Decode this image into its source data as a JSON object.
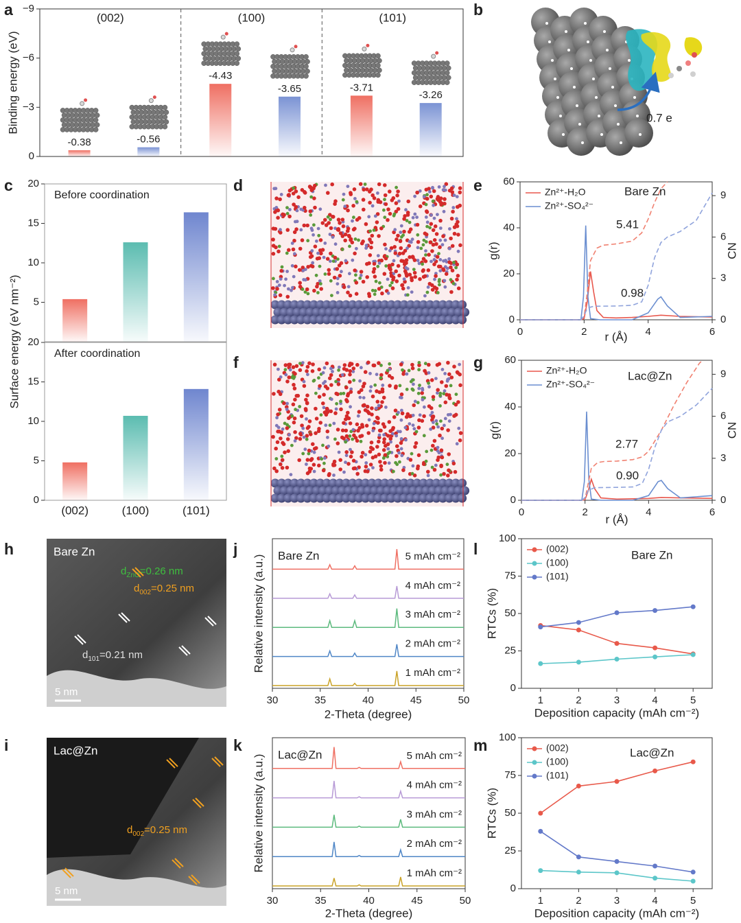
{
  "chart_data": [
    {
      "panel": "a",
      "type": "bar",
      "ylabel": "Binding energy (eV)",
      "categories": [
        "(002)",
        "(100)",
        "(101)"
      ],
      "series": [
        {
          "color": "#ef6f62",
          "values": [
            -0.38,
            -4.43,
            -3.71
          ]
        },
        {
          "color": "#7b93d4",
          "values": [
            -0.56,
            -3.65,
            -3.26
          ]
        }
      ],
      "ylim": [
        0,
        -9
      ],
      "yticks": [
        0,
        {
          "value": -3,
          "label": "−3"
        },
        {
          "value": -6,
          "label": "−6"
        },
        {
          "value": -9,
          "label": "−9"
        }
      ],
      "data_labels": true
    },
    {
      "panel": "c",
      "type": "bar",
      "title": "Before coordination",
      "ylabel": "Surface energy (eV nm⁻²)",
      "categories": [
        null,
        null,
        null
      ],
      "values": [
        5.4,
        12.6,
        16.4
      ],
      "colors": [
        "#ef6f62",
        "#5bbcb0",
        "#6f86cf"
      ],
      "ylim": [
        0,
        20
      ],
      "yticks": [
        5,
        10,
        15,
        20
      ]
    },
    {
      "type": "bar",
      "title": "After coordination",
      "categories": [
        "(002)",
        "(100)",
        "(101)"
      ],
      "values": [
        4.8,
        10.7,
        14.1
      ],
      "colors": [
        "#ef6f62",
        "#5bbcb0",
        "#6f86cf"
      ],
      "ylim": [
        0,
        20
      ],
      "yticks": [
        0,
        5,
        10,
        15,
        20
      ]
    },
    {
      "panel": "e",
      "type": "line",
      "xlabel": "r (Å)",
      "ylabel": "g(r)",
      "y2label": "CN",
      "xlim": [
        0,
        6
      ],
      "xticks": [
        0,
        2,
        4,
        6
      ],
      "ylim": [
        0,
        60
      ],
      "yticks": [
        0,
        20,
        40,
        60
      ],
      "y2lim": [
        0,
        10
      ],
      "y2ticks": [
        0,
        3,
        6,
        9
      ],
      "legend": "upper left",
      "annotations": [
        "Bare Zn",
        "5.41",
        "0.98"
      ],
      "series": [
        {
          "name": "Zn²⁺-H₂O",
          "color": "#e8574c",
          "x": [
            0,
            1.9,
            2.0,
            2.1,
            2.2,
            2.3,
            2.4,
            2.6,
            3.0,
            3.5,
            4.0,
            4.4,
            5.0,
            6.0
          ],
          "values": [
            0,
            0,
            0.5,
            8,
            21,
            12,
            4,
            1,
            0.8,
            1,
            1.5,
            2,
            1.5,
            1.2
          ]
        },
        {
          "name": "Zn²⁺-SO₄²⁻",
          "color": "#6a8ed0",
          "x": [
            0,
            1.9,
            1.98,
            2.05,
            2.12,
            2.2,
            2.5,
            3.5,
            4.0,
            4.3,
            4.4,
            4.6,
            5.0,
            6.0
          ],
          "values": [
            0,
            0,
            10,
            41,
            10,
            0.5,
            0,
            0,
            3,
            9,
            10,
            6,
            1,
            1.5
          ]
        },
        {
          "color": "#f08070",
          "dash": true,
          "axis": "y2",
          "x": [
            0,
            1.9,
            2.0,
            2.1,
            2.2,
            2.4,
            2.6,
            3.0,
            3.5,
            3.8,
            4.0,
            4.2,
            4.4,
            4.6
          ],
          "values": [
            0,
            0,
            0.2,
            2,
            4.3,
            5.2,
            5.41,
            5.5,
            5.7,
            6.3,
            7.3,
            8.5,
            9.5,
            10
          ]
        },
        {
          "color": "#8fa3dc",
          "dash": true,
          "axis": "y2",
          "x": [
            0,
            1.9,
            2.0,
            2.1,
            2.3,
            3.0,
            3.5,
            3.8,
            4.0,
            4.2,
            4.4,
            4.6,
            5.0,
            5.5,
            6.0
          ],
          "values": [
            0,
            0,
            0.3,
            0.85,
            0.98,
            1.0,
            1.05,
            1.3,
            2.5,
            4.5,
            5.6,
            6.0,
            6.4,
            7.2,
            9.2
          ]
        }
      ]
    },
    {
      "panel": "g",
      "type": "line",
      "xlabel": "r (Å)",
      "ylabel": "g(r)",
      "y2label": "CN",
      "xlim": [
        0,
        6
      ],
      "xticks": [
        0,
        2,
        4,
        6
      ],
      "ylim": [
        0,
        60
      ],
      "yticks": [
        0,
        20,
        40,
        60
      ],
      "y2lim": [
        0,
        10
      ],
      "y2ticks": [
        0,
        3,
        6,
        9
      ],
      "legend": "upper left",
      "annotations": [
        "Lac@Zn",
        "2.77",
        "0.90"
      ],
      "series": [
        {
          "name": "Zn²⁺-H₂O",
          "color": "#e8574c",
          "x": [
            0,
            1.9,
            2.0,
            2.1,
            2.2,
            2.3,
            2.5,
            3.0,
            4.0,
            4.4,
            5.0,
            6.0
          ],
          "values": [
            0,
            0,
            0.3,
            4,
            9,
            5,
            1,
            0.5,
            0.8,
            1.2,
            1,
            0.8
          ]
        },
        {
          "name": "Zn²⁺-SO₄²⁻",
          "color": "#6a8ed0",
          "x": [
            0,
            1.9,
            1.98,
            2.05,
            2.12,
            2.2,
            2.5,
            3.5,
            4.0,
            4.3,
            4.4,
            4.6,
            5.0,
            6.0
          ],
          "values": [
            0,
            0,
            8,
            38,
            9,
            0.5,
            0,
            0,
            2,
            8,
            8.5,
            5,
            1,
            2
          ]
        },
        {
          "color": "#f08070",
          "dash": true,
          "axis": "y2",
          "x": [
            0,
            1.9,
            2.0,
            2.1,
            2.2,
            2.4,
            2.6,
            3.0,
            3.5,
            3.8,
            4.0,
            4.4,
            4.8,
            5.2,
            5.6,
            5.7
          ],
          "values": [
            0,
            0,
            0.1,
            1.2,
            2.3,
            2.7,
            2.77,
            2.8,
            2.9,
            3.1,
            3.5,
            5,
            6.8,
            8.4,
            9.8,
            10
          ]
        },
        {
          "color": "#8fa3dc",
          "dash": true,
          "axis": "y2",
          "x": [
            0,
            1.9,
            2.0,
            2.1,
            2.3,
            3.0,
            3.5,
            3.8,
            4.0,
            4.2,
            4.4,
            4.6,
            5.0,
            5.5,
            6.0
          ],
          "values": [
            0,
            0,
            0.2,
            0.7,
            0.9,
            0.92,
            0.95,
            1.2,
            2.2,
            3.8,
            5,
            5.6,
            6,
            6.8,
            8
          ]
        }
      ]
    },
    {
      "panel": "j",
      "type": "spectrum",
      "title": "Bare Zn",
      "xlabel": "2-Theta (degree)",
      "ylabel": "Relative intensity (a.u.)",
      "xlim": [
        30,
        50
      ],
      "xticks": [
        30,
        35,
        40,
        45,
        50
      ],
      "ylim": [
        0,
        1
      ],
      "x": [
        30,
        35.8,
        36.0,
        36.2,
        38.4,
        38.6,
        38.8,
        42.8,
        43.0,
        43.2,
        50
      ],
      "series": [
        {
          "name": "5 mAh cm⁻²",
          "color": "#ef6f62",
          "values": [
            0,
            0,
            0.2,
            0,
            0,
            0.15,
            0,
            0,
            0.9,
            0,
            0
          ]
        },
        {
          "name": "4 mAh cm⁻²",
          "color": "#b79ad6",
          "values": [
            0,
            0,
            0.2,
            0,
            0,
            0.15,
            0,
            0,
            0.55,
            0,
            0
          ]
        },
        {
          "name": "3 mAh cm⁻²",
          "color": "#5cba7d",
          "values": [
            0,
            0,
            0.3,
            0,
            0,
            0.3,
            0,
            0,
            0.85,
            0,
            0
          ]
        },
        {
          "name": "2 mAh cm⁻²",
          "color": "#4f86c6",
          "values": [
            0,
            0,
            0.25,
            0,
            0,
            0.15,
            0,
            0,
            0.55,
            0,
            0
          ]
        },
        {
          "name": "1 mAh cm⁻²",
          "color": "#c9a227",
          "values": [
            0,
            0,
            0.3,
            0,
            0,
            0.1,
            0,
            0,
            0.65,
            0,
            0
          ]
        }
      ]
    },
    {
      "panel": "k",
      "type": "spectrum",
      "title": "Lac@Zn",
      "xlabel": "2-Theta (degree)",
      "ylabel": "Relative intensity (a.u.)",
      "xlim": [
        30,
        50
      ],
      "xticks": [
        30,
        35,
        40,
        45,
        50
      ],
      "ylim": [
        0,
        1
      ],
      "x": [
        30,
        36.2,
        36.4,
        36.6,
        38.8,
        39.0,
        39.2,
        43.1,
        43.3,
        43.5,
        50
      ],
      "series": [
        {
          "name": "5 mAh cm⁻²",
          "color": "#ef6f62",
          "values": [
            0,
            0,
            0.95,
            0,
            0,
            0.05,
            0,
            0,
            0.3,
            0,
            0
          ]
        },
        {
          "name": "4 mAh cm⁻²",
          "color": "#b79ad6",
          "values": [
            0,
            0,
            0.75,
            0,
            0,
            0.05,
            0,
            0,
            0.3,
            0,
            0
          ]
        },
        {
          "name": "3 mAh cm⁻²",
          "color": "#5cba7d",
          "values": [
            0,
            0,
            0.55,
            0,
            0,
            0.05,
            0,
            0,
            0.35,
            0,
            0
          ]
        },
        {
          "name": "2 mAh cm⁻²",
          "color": "#4f86c6",
          "values": [
            0,
            0,
            0.65,
            0,
            0,
            0.05,
            0,
            0,
            0.3,
            0,
            0
          ]
        },
        {
          "name": "1 mAh cm⁻²",
          "color": "#c9a227",
          "values": [
            0,
            0,
            0.35,
            0,
            0,
            0.05,
            0,
            0,
            0.4,
            0,
            0
          ]
        }
      ]
    },
    {
      "panel": "l",
      "type": "line",
      "markers": true,
      "annotations": [
        "Bare Zn"
      ],
      "xlabel": "Deposition capacity (mAh cm⁻²)",
      "ylabel": "RTCs (%)",
      "xlim": [
        0.5,
        5.5
      ],
      "xticks": [
        1,
        2,
        3,
        4,
        5
      ],
      "ylim": [
        0,
        100
      ],
      "yticks": [
        0,
        25,
        50,
        75,
        100
      ],
      "legend": "upper left",
      "x": [
        1,
        2,
        3,
        4,
        5
      ],
      "series": [
        {
          "name": "(002)",
          "color": "#e8594a",
          "values": [
            42,
            39,
            30,
            27,
            23
          ]
        },
        {
          "name": "(100)",
          "color": "#5cc6c9",
          "values": [
            16.5,
            17.5,
            19.5,
            21,
            22.5
          ]
        },
        {
          "name": "(101)",
          "color": "#6379c9",
          "values": [
            41,
            44,
            50.5,
            52,
            54.5
          ]
        }
      ]
    },
    {
      "panel": "m",
      "type": "line",
      "markers": true,
      "annotations": [
        "Lac@Zn"
      ],
      "xlabel": "Deposition capacity (mAh cm⁻²)",
      "ylabel": "RTCs (%)",
      "xlim": [
        0.5,
        5.5
      ],
      "xticks": [
        1,
        2,
        3,
        4,
        5
      ],
      "ylim": [
        0,
        100
      ],
      "yticks": [
        0,
        25,
        50,
        75,
        100
      ],
      "legend": "upper left",
      "x": [
        1,
        2,
        3,
        4,
        5
      ],
      "series": [
        {
          "name": "(002)",
          "color": "#e8594a",
          "values": [
            50,
            68,
            71,
            78,
            84
          ]
        },
        {
          "name": "(100)",
          "color": "#5cc6c9",
          "values": [
            12,
            11,
            10.5,
            7,
            5
          ]
        },
        {
          "name": "(101)",
          "color": "#6379c9",
          "values": [
            38,
            21,
            18,
            15,
            11
          ]
        }
      ]
    }
  ],
  "images": [
    {
      "panel": "b",
      "annotation": "0.7 e"
    },
    {
      "panel": "d"
    },
    {
      "panel": "f"
    },
    {
      "panel": "h",
      "title": "Bare Zn",
      "labels": [
        {
          "base": "d",
          "sub": "ZnO",
          "tail": "=0.26 nm"
        },
        {
          "base": "d",
          "sub": "002",
          "tail": "=0.25 nm"
        },
        {
          "base": "d",
          "sub": "101",
          "tail": "=0.21 nm"
        }
      ],
      "scale_bar": "5 nm"
    },
    {
      "panel": "i",
      "title": "Lac@Zn",
      "labels": [
        {
          "base": "d",
          "sub": "002",
          "tail": "=0.25 nm"
        }
      ],
      "scale_bar": "5 nm"
    }
  ]
}
